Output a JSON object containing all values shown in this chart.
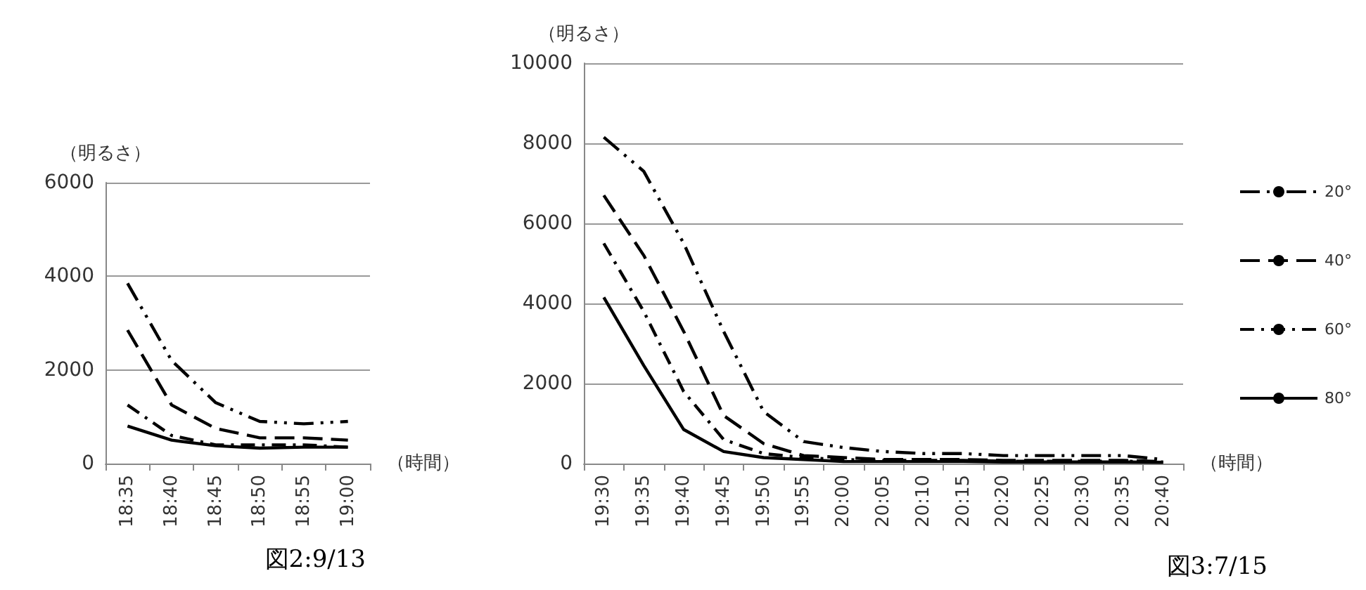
{
  "chart_data": [
    {
      "type": "line",
      "ylabel": "（明るさ）",
      "xlabel": "（時間）",
      "annotations": [
        "図2:9/13"
      ],
      "categories": [
        "18:35",
        "18:40",
        "18:45",
        "18:50",
        "18:55",
        "19:00"
      ],
      "series": [
        {
          "color": "#000000",
          "line_style": "dashed",
          "values": [
            3850,
            2200,
            1300,
            900,
            850,
            900
          ]
        },
        {
          "color": "#000000",
          "line_style": "dashed",
          "values": [
            2850,
            1250,
            750,
            550,
            550,
            500
          ]
        },
        {
          "color": "#000000",
          "line_style": "dashed",
          "values": [
            1250,
            600,
            400,
            400,
            400,
            350
          ]
        },
        {
          "color": "#000000",
          "line_style": "solid",
          "values": [
            800,
            500,
            380,
            330,
            350,
            350
          ]
        }
      ],
      "ylim": [
        0,
        6000
      ],
      "yticks": [
        0,
        2000,
        4000,
        6000
      ],
      "grid": "y",
      "marker": "none",
      "legend": false
    },
    {
      "type": "line",
      "ylabel": "（明るさ）",
      "xlabel": "（時間）",
      "annotations": [
        "図3:7/15"
      ],
      "categories": [
        "19:30",
        "19:35",
        "19:40",
        "19:45",
        "19:50",
        "19:55",
        "20:00",
        "20:05",
        "20:10",
        "20:15",
        "20:20",
        "20:25",
        "20:30",
        "20:35",
        "20:40"
      ],
      "series": [
        {
          "name": "20°",
          "color": "#000000",
          "line_style": "dashed",
          "values": [
            8150,
            7300,
            5500,
            3300,
            1300,
            550,
            400,
            300,
            250,
            250,
            200,
            200,
            200,
            200,
            100
          ]
        },
        {
          "name": "40°",
          "color": "#000000",
          "line_style": "dashed",
          "values": [
            6700,
            5200,
            3300,
            1200,
            500,
            200,
            150,
            100,
            100,
            100,
            80,
            80,
            80,
            80,
            50
          ]
        },
        {
          "name": "60°",
          "color": "#000000",
          "line_style": "dashed",
          "values": [
            5500,
            3800,
            1800,
            600,
            250,
            150,
            100,
            80,
            80,
            80,
            60,
            60,
            60,
            60,
            40
          ]
        },
        {
          "name": "80°",
          "color": "#000000",
          "line_style": "solid",
          "values": [
            4150,
            2450,
            850,
            300,
            150,
            100,
            50,
            50,
            50,
            50,
            40,
            40,
            40,
            40,
            30
          ]
        }
      ],
      "ylim": [
        0,
        10000
      ],
      "yticks": [
        0,
        2000,
        4000,
        6000,
        8000,
        10000
      ],
      "grid": "y",
      "marker": "none",
      "legend": "right"
    }
  ]
}
